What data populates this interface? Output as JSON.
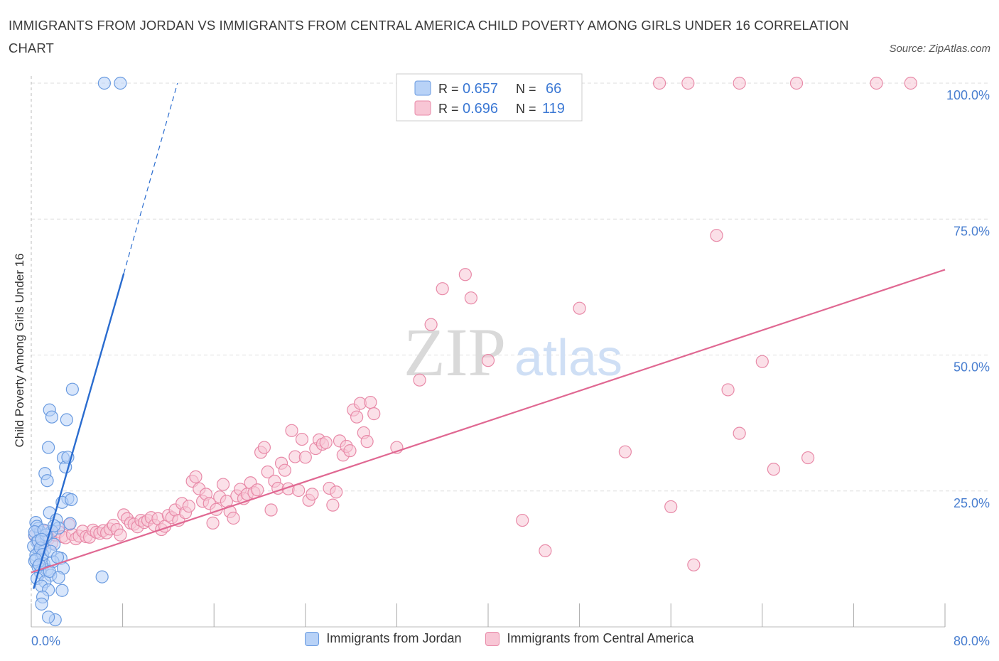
{
  "title": "IMMIGRANTS FROM JORDAN VS IMMIGRANTS FROM CENTRAL AMERICA CHILD POVERTY AMONG GIRLS UNDER 16 CORRELATION CHART",
  "source": "Source: ZipAtlas.com",
  "watermark": {
    "zip": "ZIP",
    "atlas": "atlas"
  },
  "colors": {
    "blue_fill": "#b8d2f7",
    "blue_stroke": "#6a9be0",
    "blue_line": "#2a6ccf",
    "pink_fill": "#f8c6d5",
    "pink_stroke": "#e88aa8",
    "pink_line": "#e06892",
    "tick_text": "#4a7fd0",
    "grid": "#dddddd"
  },
  "legend_box": {
    "rows": [
      {
        "r_label": "R =",
        "r_value": "0.657",
        "n_label": "N =",
        "n_value": "66"
      },
      {
        "r_label": "R =",
        "r_value": "0.696",
        "n_label": "N =",
        "n_value": "119"
      }
    ]
  },
  "chart_data": {
    "type": "scatter",
    "title": "IMMIGRANTS FROM JORDAN VS IMMIGRANTS FROM CENTRAL AMERICA CHILD POVERTY AMONG GIRLS UNDER 16 CORRELATION CHART",
    "xlabel": "",
    "ylabel": "Child Poverty Among Girls Under 16",
    "xlim": [
      0,
      80
    ],
    "ylim": [
      0,
      100
    ],
    "x_ticks": [
      "0.0%",
      "80.0%"
    ],
    "y_ticks": [
      {
        "value": 25,
        "label": "25.0%"
      },
      {
        "value": 50,
        "label": "50.0%"
      },
      {
        "value": 75,
        "label": "75.0%"
      },
      {
        "value": 100,
        "label": "100.0%"
      }
    ],
    "grid": true,
    "legend_placement": "bottom",
    "series": [
      {
        "name": "Immigrants from Jordan",
        "color": "#6a9be0",
        "R": 0.657,
        "N": 66,
        "trend": {
          "x_start": 0.2,
          "y_start": 7.0,
          "x_solid_end": 8.1,
          "y_solid_end": 65.0,
          "x_dash_end": 12.8,
          "y_dash_end": 100.0
        },
        "points": [
          [
            0.4,
            19.2
          ],
          [
            0.6,
            18.1
          ],
          [
            0.3,
            16.9
          ],
          [
            0.8,
            17.4
          ],
          [
            0.5,
            15.6
          ],
          [
            0.2,
            14.8
          ],
          [
            0.7,
            14.0
          ],
          [
            0.4,
            13.2
          ],
          [
            0.9,
            12.7
          ],
          [
            0.3,
            12.1
          ],
          [
            1.1,
            11.6
          ],
          [
            0.6,
            11.0
          ],
          [
            1.4,
            10.5
          ],
          [
            0.8,
            10.0
          ],
          [
            1.7,
            9.5
          ],
          [
            0.5,
            8.9
          ],
          [
            1.2,
            8.3
          ],
          [
            0.9,
            7.5
          ],
          [
            1.5,
            6.8
          ],
          [
            2.7,
            6.7
          ],
          [
            1.0,
            5.5
          ],
          [
            0.9,
            4.2
          ],
          [
            2.1,
            1.3
          ],
          [
            1.5,
            1.8
          ],
          [
            1.2,
            28.2
          ],
          [
            1.4,
            26.9
          ],
          [
            2.8,
            31.1
          ],
          [
            3.0,
            29.4
          ],
          [
            1.5,
            33.0
          ],
          [
            3.2,
            23.6
          ],
          [
            2.7,
            22.9
          ],
          [
            1.6,
            21.0
          ],
          [
            2.2,
            19.7
          ],
          [
            3.4,
            19.0
          ],
          [
            2.4,
            18.2
          ],
          [
            1.8,
            17.6
          ],
          [
            1.3,
            16.4
          ],
          [
            2.0,
            15.2
          ],
          [
            1.2,
            14.3
          ],
          [
            2.6,
            12.6
          ],
          [
            1.9,
            12.0
          ],
          [
            2.8,
            10.8
          ],
          [
            1.6,
            10.2
          ],
          [
            2.4,
            9.1
          ],
          [
            3.2,
            31.2
          ],
          [
            3.5,
            23.4
          ],
          [
            1.6,
            39.9
          ],
          [
            1.8,
            38.6
          ],
          [
            3.1,
            38.1
          ],
          [
            3.6,
            43.7
          ],
          [
            6.2,
            9.2
          ],
          [
            6.4,
            100.0
          ],
          [
            7.8,
            100.0
          ],
          [
            0.5,
            18.5
          ],
          [
            0.3,
            17.5
          ],
          [
            0.6,
            15.8
          ],
          [
            0.8,
            14.5
          ],
          [
            1.0,
            13.3
          ],
          [
            0.4,
            12.4
          ],
          [
            0.7,
            11.4
          ],
          [
            1.3,
            16.9
          ],
          [
            1.7,
            13.9
          ],
          [
            2.3,
            12.8
          ],
          [
            1.1,
            17.8
          ],
          [
            0.9,
            16.1
          ],
          [
            2.0,
            18.6
          ]
        ]
      },
      {
        "name": "Immigrants from Central America",
        "color": "#e88aa8",
        "R": 0.696,
        "N": 119,
        "trend": {
          "x_start": 0.0,
          "y_start": 10.0,
          "x_end": 80.0,
          "y_end": 65.7
        },
        "points": [
          [
            0.3,
            16.8
          ],
          [
            0.6,
            15.7
          ],
          [
            0.9,
            14.7
          ],
          [
            1.2,
            17.6
          ],
          [
            1.5,
            16.2
          ],
          [
            1.8,
            15.4
          ],
          [
            2.1,
            16.9
          ],
          [
            2.4,
            17.5
          ],
          [
            2.7,
            16.6
          ],
          [
            3.0,
            16.4
          ],
          [
            3.3,
            18.8
          ],
          [
            3.6,
            17.0
          ],
          [
            3.9,
            16.2
          ],
          [
            4.2,
            16.7
          ],
          [
            4.5,
            17.6
          ],
          [
            4.8,
            16.6
          ],
          [
            5.1,
            16.5
          ],
          [
            5.4,
            17.8
          ],
          [
            5.7,
            17.4
          ],
          [
            6.0,
            17.2
          ],
          [
            6.3,
            17.7
          ],
          [
            6.6,
            17.3
          ],
          [
            6.9,
            18.0
          ],
          [
            7.2,
            18.7
          ],
          [
            7.5,
            17.9
          ],
          [
            7.8,
            16.9
          ],
          [
            8.1,
            20.6
          ],
          [
            8.4,
            19.9
          ],
          [
            8.7,
            19.1
          ],
          [
            9.0,
            18.9
          ],
          [
            9.3,
            18.4
          ],
          [
            9.6,
            19.6
          ],
          [
            9.9,
            19.2
          ],
          [
            10.2,
            19.6
          ],
          [
            10.5,
            20.1
          ],
          [
            10.8,
            18.7
          ],
          [
            11.1,
            19.9
          ],
          [
            11.4,
            17.9
          ],
          [
            11.7,
            18.5
          ],
          [
            12.0,
            20.5
          ],
          [
            12.3,
            20.1
          ],
          [
            12.6,
            21.5
          ],
          [
            12.9,
            19.6
          ],
          [
            13.2,
            22.7
          ],
          [
            13.5,
            21.0
          ],
          [
            13.8,
            22.2
          ],
          [
            14.1,
            26.8
          ],
          [
            14.4,
            27.6
          ],
          [
            14.7,
            25.4
          ],
          [
            15.0,
            23.1
          ],
          [
            15.3,
            24.4
          ],
          [
            15.6,
            22.7
          ],
          [
            15.9,
            19.1
          ],
          [
            16.2,
            21.6
          ],
          [
            16.5,
            23.9
          ],
          [
            16.8,
            26.2
          ],
          [
            17.1,
            23.1
          ],
          [
            17.4,
            21.2
          ],
          [
            17.7,
            20.0
          ],
          [
            18.0,
            24.1
          ],
          [
            18.3,
            25.3
          ],
          [
            18.6,
            23.6
          ],
          [
            18.9,
            24.4
          ],
          [
            19.2,
            26.5
          ],
          [
            19.5,
            24.7
          ],
          [
            19.8,
            25.2
          ],
          [
            20.1,
            32.1
          ],
          [
            20.4,
            33.0
          ],
          [
            20.7,
            28.5
          ],
          [
            21.0,
            21.5
          ],
          [
            21.3,
            26.8
          ],
          [
            21.6,
            25.5
          ],
          [
            21.9,
            30.1
          ],
          [
            22.2,
            28.8
          ],
          [
            22.5,
            25.4
          ],
          [
            22.8,
            36.1
          ],
          [
            23.1,
            31.3
          ],
          [
            23.4,
            25.1
          ],
          [
            23.7,
            34.5
          ],
          [
            24.0,
            31.2
          ],
          [
            24.3,
            23.3
          ],
          [
            24.6,
            24.4
          ],
          [
            24.9,
            32.8
          ],
          [
            25.2,
            34.4
          ],
          [
            25.5,
            33.6
          ],
          [
            25.8,
            33.9
          ],
          [
            26.1,
            25.5
          ],
          [
            26.4,
            22.4
          ],
          [
            26.7,
            24.8
          ],
          [
            27.0,
            34.2
          ],
          [
            27.3,
            31.6
          ],
          [
            27.6,
            33.2
          ],
          [
            27.9,
            32.4
          ],
          [
            28.2,
            39.9
          ],
          [
            28.5,
            38.6
          ],
          [
            28.8,
            41.1
          ],
          [
            29.1,
            35.7
          ],
          [
            29.4,
            34.1
          ],
          [
            29.7,
            41.3
          ],
          [
            30.0,
            39.2
          ],
          [
            32.0,
            33.0
          ],
          [
            34.0,
            45.4
          ],
          [
            35.0,
            55.6
          ],
          [
            36.0,
            62.2
          ],
          [
            38.0,
            64.8
          ],
          [
            38.5,
            60.5
          ],
          [
            40.0,
            49.0
          ],
          [
            43.0,
            19.6
          ],
          [
            45.0,
            14.0
          ],
          [
            48.0,
            58.6
          ],
          [
            52.0,
            32.2
          ],
          [
            56.0,
            22.1
          ],
          [
            58.0,
            11.4
          ],
          [
            60.0,
            72.0
          ],
          [
            61.0,
            43.6
          ],
          [
            62.0,
            35.6
          ],
          [
            65.0,
            29.0
          ],
          [
            64.0,
            48.8
          ],
          [
            68.0,
            31.1
          ],
          [
            55.0,
            100.0
          ],
          [
            57.5,
            100.0
          ],
          [
            62.0,
            100.0
          ],
          [
            67.0,
            100.0
          ],
          [
            74.0,
            100.0
          ],
          [
            77.0,
            100.0
          ]
        ]
      }
    ]
  },
  "bottom_legend": [
    {
      "label": "Immigrants from Jordan"
    },
    {
      "label": "Immigrants from Central America"
    }
  ]
}
